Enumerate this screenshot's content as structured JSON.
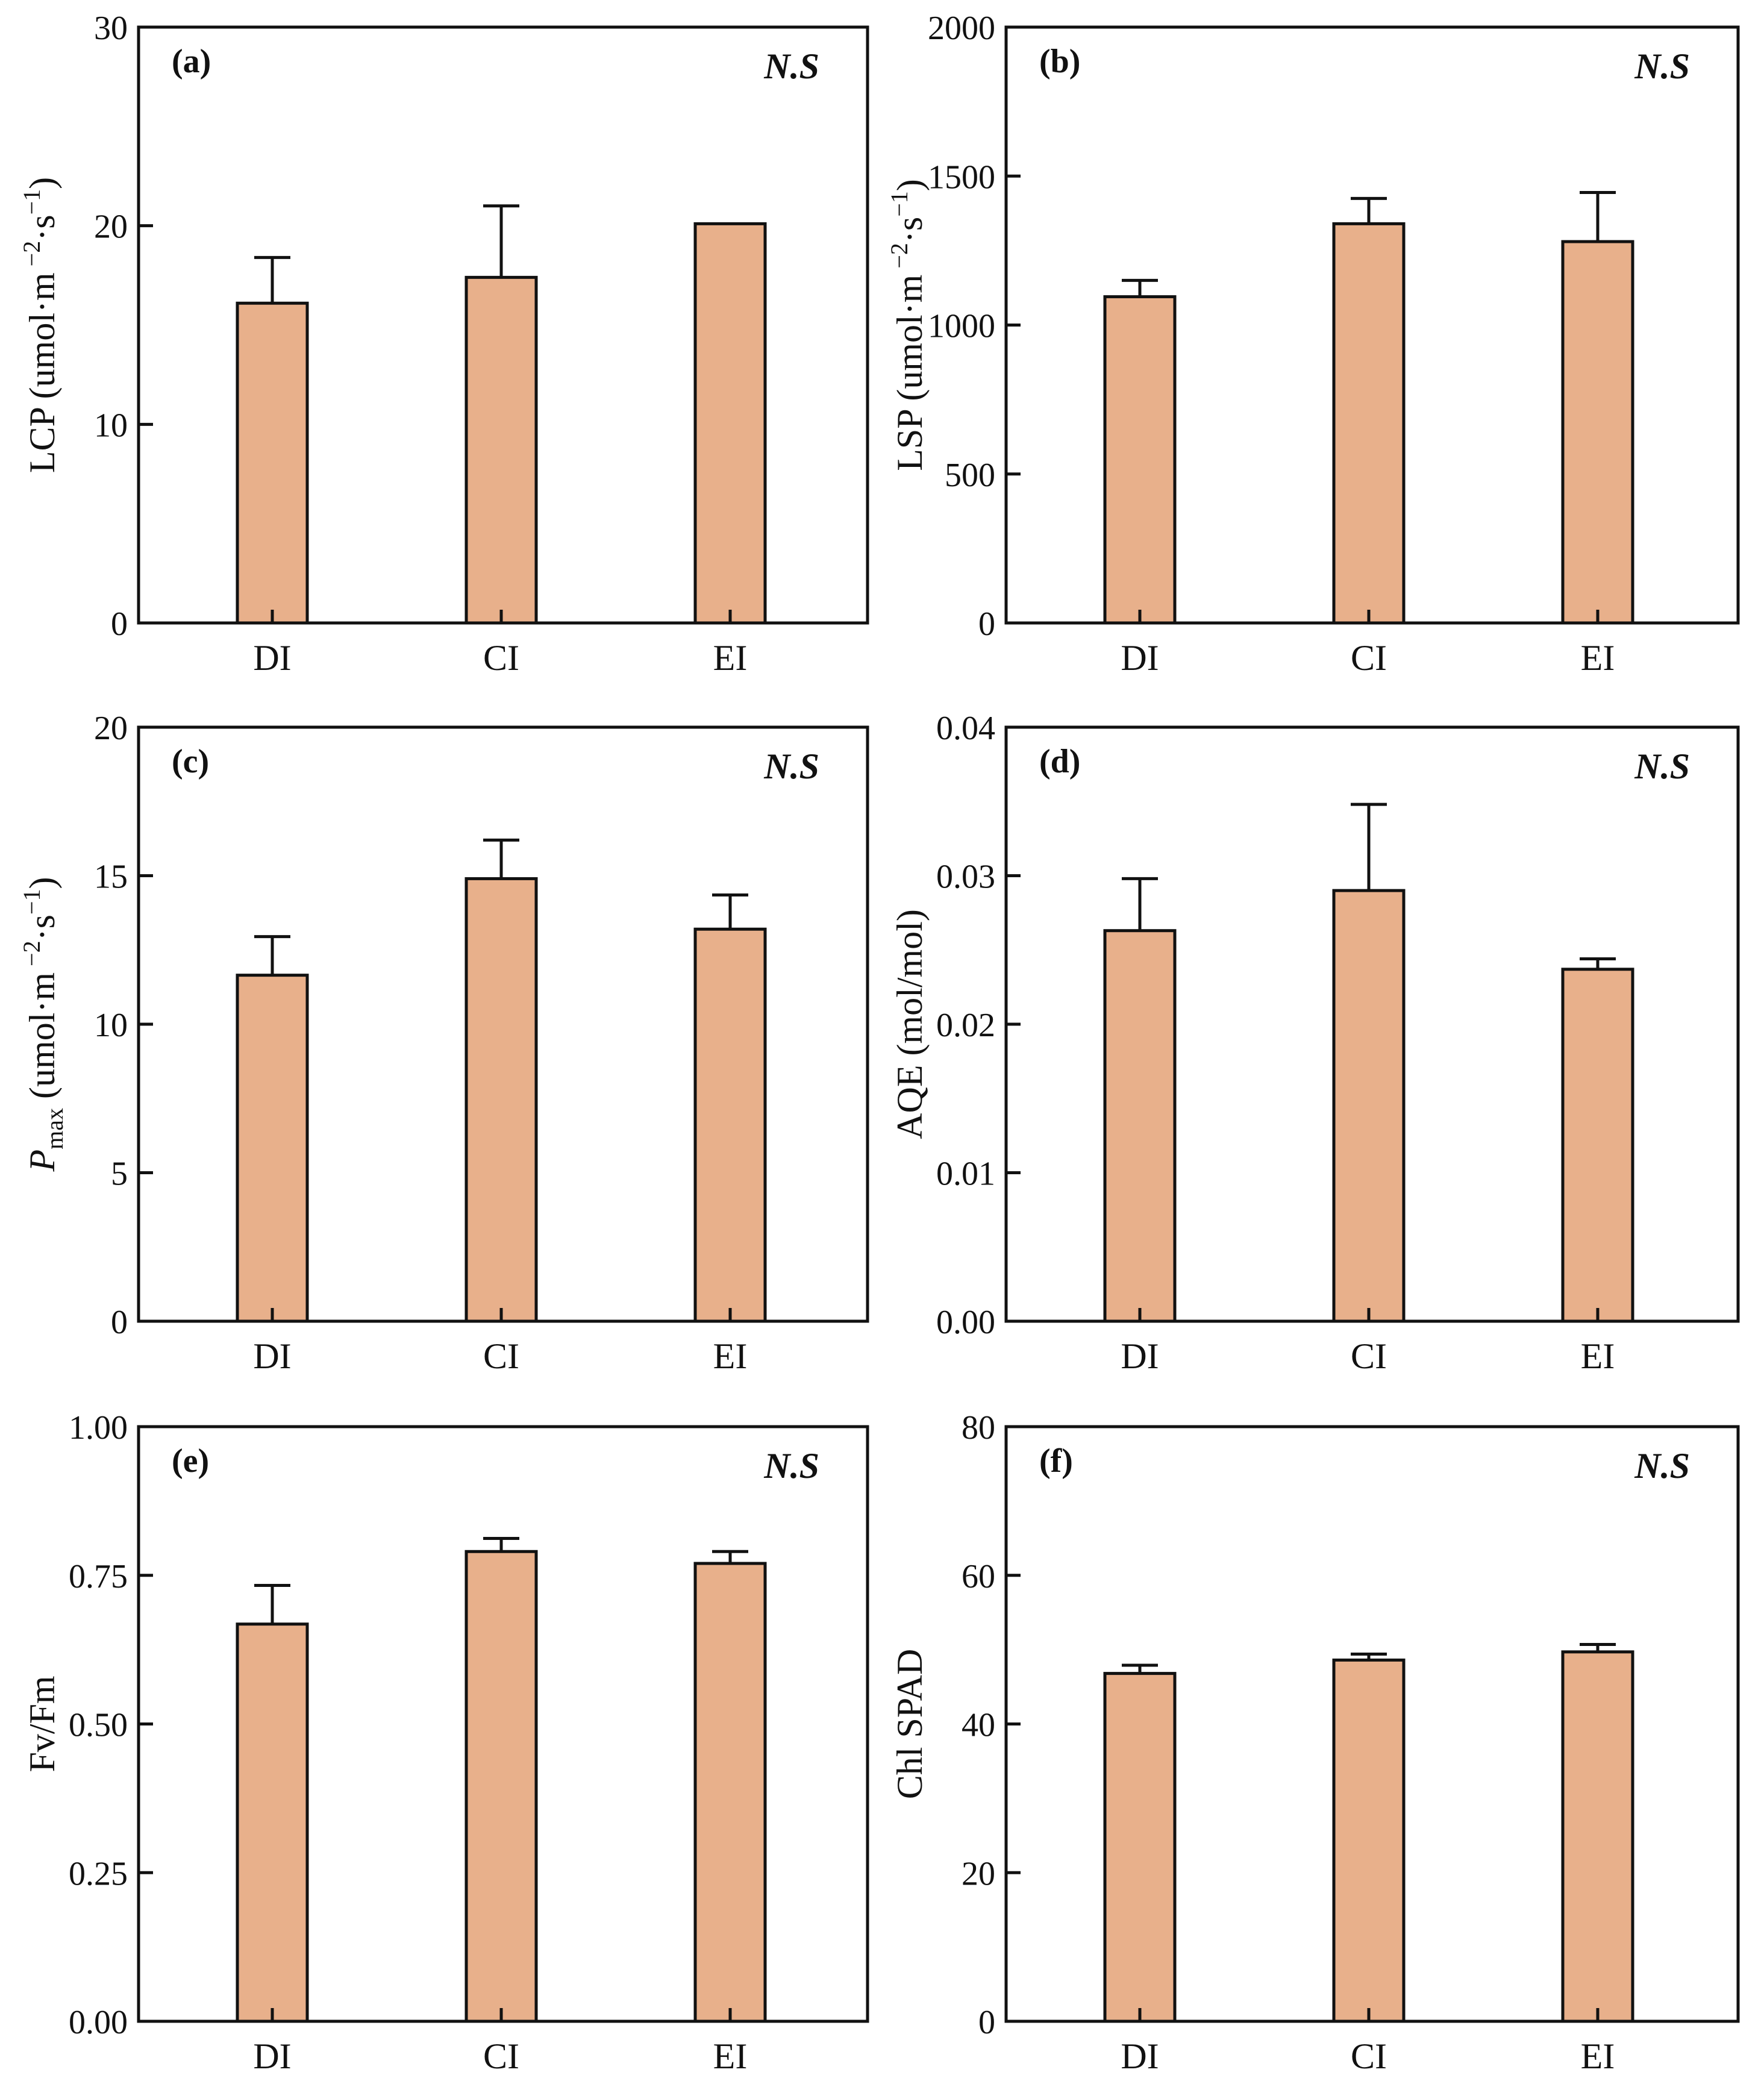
{
  "chart_data": [
    {
      "type": "bar",
      "panel": "(a)",
      "annotation": "N.S",
      "categories": [
        "DI",
        "CI",
        "EI"
      ],
      "values": [
        16.1,
        17.4,
        20.1
      ],
      "errors": [
        2.3,
        3.6,
        0
      ],
      "ylabel_main": "LCP (umol·m",
      "ylabel_sup1": " −2",
      "ylabel_mid": "·s",
      "ylabel_sup2": "−1",
      "ylabel_end": ")",
      "ylim": [
        0,
        30
      ],
      "yticks": [
        0,
        10,
        20,
        30
      ],
      "ytick_labels": [
        "0",
        "10",
        "20",
        "30"
      ]
    },
    {
      "type": "bar",
      "panel": "(b)",
      "annotation": "N.S",
      "categories": [
        "DI",
        "CI",
        "EI"
      ],
      "values": [
        1095,
        1340,
        1280
      ],
      "errors": [
        55,
        85,
        165
      ],
      "ylabel_main": "LSP (umol·m",
      "ylabel_sup1": " −2",
      "ylabel_mid": "·s",
      "ylabel_sup2": "−1",
      "ylabel_end": ")",
      "ylim": [
        0,
        2000
      ],
      "yticks": [
        0,
        500,
        1000,
        1500,
        2000
      ],
      "ytick_labels": [
        "0",
        "500",
        "1000",
        "1500",
        "2000"
      ]
    },
    {
      "type": "bar",
      "panel": "(c)",
      "annotation": "N.S",
      "categories": [
        "DI",
        "CI",
        "EI"
      ],
      "values": [
        11.65,
        14.9,
        13.2
      ],
      "errors": [
        1.3,
        1.3,
        1.15
      ],
      "ylabel_italic": "P",
      "ylabel_sub": "max",
      "ylabel_main": " (umol·m",
      "ylabel_sup1": " −2",
      "ylabel_mid": "·s",
      "ylabel_sup2": "−1",
      "ylabel_end": ")",
      "ylim": [
        0,
        20
      ],
      "yticks": [
        0,
        5,
        10,
        15,
        20
      ],
      "ytick_labels": [
        "0",
        "5",
        "10",
        "15",
        "20"
      ]
    },
    {
      "type": "bar",
      "panel": "(d)",
      "annotation": "N.S",
      "categories": [
        "DI",
        "CI",
        "EI"
      ],
      "values": [
        0.0263,
        0.029,
        0.0237
      ],
      "errors": [
        0.0035,
        0.0058,
        0.0007
      ],
      "ylabel_main": "AQE (mol/mol)",
      "ylim": [
        0,
        0.04
      ],
      "yticks": [
        0,
        0.01,
        0.02,
        0.03,
        0.04
      ],
      "ytick_labels": [
        "0.00",
        "0.01",
        "0.02",
        "0.03",
        "0.04"
      ]
    },
    {
      "type": "bar",
      "panel": "(e)",
      "annotation": "N.S",
      "categories": [
        "DI",
        "CI",
        "EI"
      ],
      "values": [
        0.668,
        0.79,
        0.77
      ],
      "errors": [
        0.065,
        0.022,
        0.02
      ],
      "ylabel_main": "Fv/Fm",
      "ylim": [
        0,
        1
      ],
      "yticks": [
        0,
        0.25,
        0.5,
        0.75,
        1
      ],
      "ytick_labels": [
        "0.00",
        "0.25",
        "0.50",
        "0.75",
        "1.00"
      ]
    },
    {
      "type": "bar",
      "panel": "(f)",
      "annotation": "N.S",
      "categories": [
        "DI",
        "CI",
        "EI"
      ],
      "values": [
        46.8,
        48.6,
        49.7
      ],
      "errors": [
        1.1,
        0.8,
        1.0
      ],
      "ylabel_main": "Chl SPAD",
      "ylim": [
        0,
        80
      ],
      "yticks": [
        0,
        20,
        40,
        60,
        80
      ],
      "ytick_labels": [
        "0",
        "20",
        "40",
        "60",
        "80"
      ]
    }
  ]
}
